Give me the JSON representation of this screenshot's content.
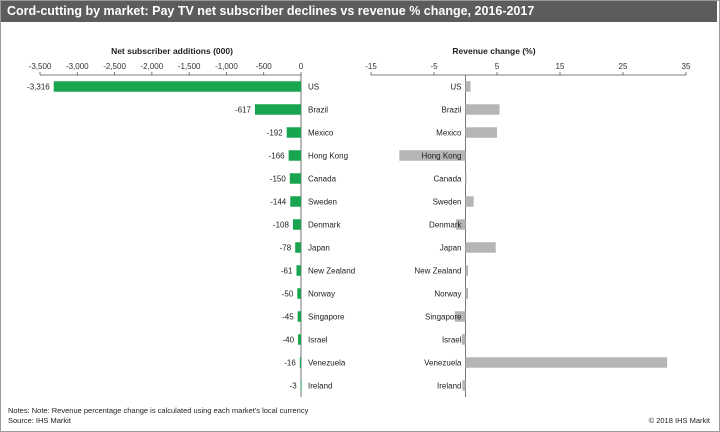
{
  "title": "Cord-cutting by market: Pay TV net subscriber declines vs revenue % change, 2016-2017",
  "notes": "Notes: Note: Revenue percentage change is calculated using each market's local currency",
  "source": "Source: IHS Markit",
  "copyright": "© 2018 IHS Markit",
  "colors": {
    "subscriber_bar": "#19a550",
    "revenue_bar": "#b5b5b5",
    "title_bg": "#5c5c5c"
  },
  "chart_data": [
    {
      "type": "bar",
      "orientation": "horizontal",
      "title": "Net subscriber additions (000)",
      "categories": [
        "US",
        "Brazil",
        "Mexico",
        "Hong Kong",
        "Canada",
        "Sweden",
        "Denmark",
        "Japan",
        "New Zealand",
        "Norway",
        "Singapore",
        "Israel",
        "Venezuela",
        "Ireland"
      ],
      "values": [
        -3316,
        -617,
        -192,
        -166,
        -150,
        -144,
        -108,
        -78,
        -61,
        -50,
        -45,
        -40,
        -16,
        -3
      ],
      "value_labels": [
        "-3,316",
        "-617",
        "-192",
        "-166",
        "-150",
        "-144",
        "-108",
        "-78",
        "-61",
        "-50",
        "-45",
        "-40",
        "-16",
        "-3"
      ],
      "xlim": [
        -3500,
        0
      ],
      "xticks": [
        -3500,
        -3000,
        -2500,
        -2000,
        -1500,
        -1000,
        -500,
        0
      ],
      "xtick_labels": [
        "-3,500",
        "-3,000",
        "-2,500",
        "-2,000",
        "-1,500",
        "-1,000",
        "-500",
        "0"
      ],
      "tick_position": "top",
      "grid": false
    },
    {
      "type": "bar",
      "orientation": "horizontal",
      "title": "Revenue change (%)",
      "categories": [
        "US",
        "Brazil",
        "Mexico",
        "Hong Kong",
        "Canada",
        "Sweden",
        "Denmark",
        "Japan",
        "New Zealand",
        "Norway",
        "Singapore",
        "Israel",
        "Venezuela",
        "Ireland"
      ],
      "values": [
        0.8,
        5.4,
        5.0,
        -10.5,
        0.1,
        1.3,
        -1.5,
        4.8,
        0.4,
        0.4,
        -1.7,
        -0.6,
        32.0,
        -0.5
      ],
      "xlim": [
        -15,
        35
      ],
      "xticks": [
        -15,
        -5,
        5,
        15,
        25,
        35
      ],
      "xtick_labels": [
        "-15",
        "-5",
        "5",
        "15",
        "25",
        "35"
      ],
      "tick_position": "top",
      "grid": false
    }
  ]
}
